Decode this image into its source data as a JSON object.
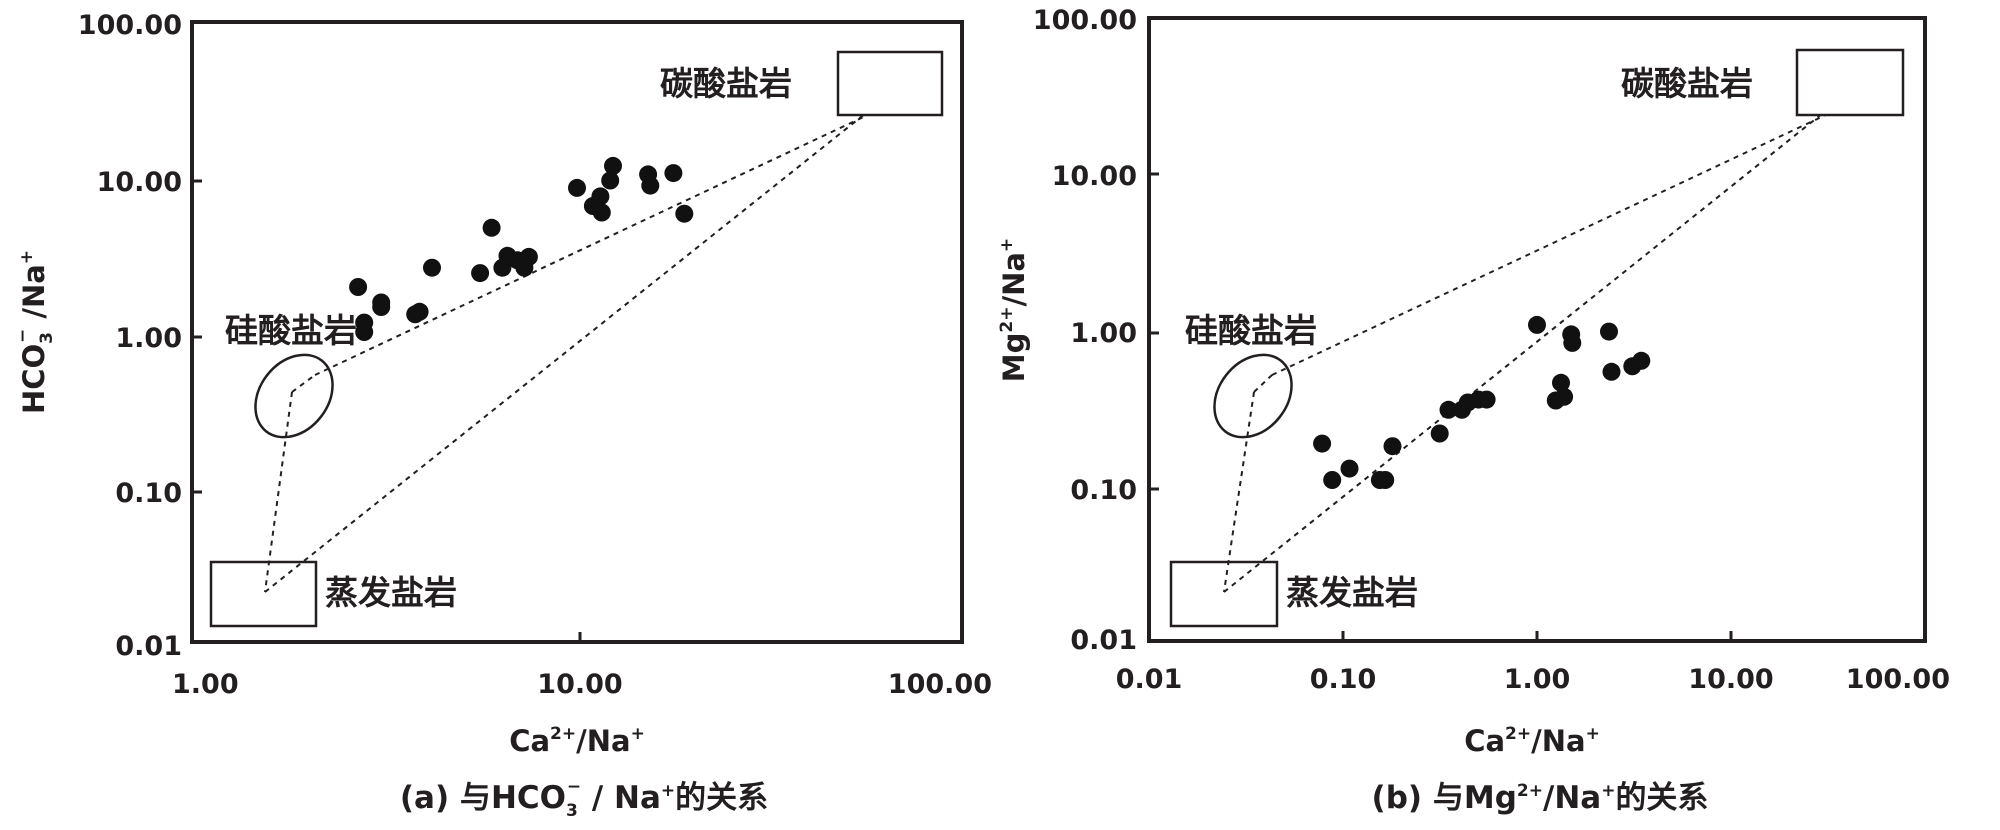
{
  "chart_data": [
    {
      "type": "scatter",
      "panel": "a",
      "x_scale": "log",
      "y_scale": "log",
      "xlim": [
        1,
        100
      ],
      "ylim": [
        0.01,
        100
      ],
      "x_ticks": [
        "1.00",
        "10.00",
        "100.00"
      ],
      "y_ticks": [
        "0.01",
        "0.10",
        "1.00",
        "10.00",
        "100.00"
      ],
      "xlabel": {
        "base": "Ca",
        "sup": "2+",
        "rest": "/Na",
        "sup2": "+"
      },
      "ylabel": {
        "base": "HCO",
        "sub": "3",
        "sup": "−",
        "rest": " /Na",
        "sup2": "+"
      },
      "caption": {
        "prefix": "(a) 与",
        "base": "HCO",
        "sub": "3",
        "sup": "−",
        "mid": " / Na",
        "sup2": "+",
        "suffix": "的关系"
      },
      "zones": {
        "carbonate": "碳酸盐岩",
        "silicate": "硅酸盐岩",
        "evaporite": "蒸发盐岩"
      },
      "points": [
        [
          2.7,
          1.95
        ],
        [
          2.8,
          1.15
        ],
        [
          2.8,
          1.0
        ],
        [
          3.1,
          1.55
        ],
        [
          3.1,
          1.45
        ],
        [
          3.8,
          1.3
        ],
        [
          3.9,
          1.35
        ],
        [
          4.2,
          2.6
        ],
        [
          5.6,
          2.4
        ],
        [
          6.0,
          4.7
        ],
        [
          6.4,
          2.6
        ],
        [
          6.6,
          3.1
        ],
        [
          7.0,
          2.9
        ],
        [
          7.3,
          2.6
        ],
        [
          7.5,
          3.05
        ],
        [
          10.0,
          8.5
        ],
        [
          11.0,
          6.5
        ],
        [
          11.5,
          7.5
        ],
        [
          11.6,
          5.9
        ],
        [
          12.2,
          9.5
        ],
        [
          12.4,
          11.8
        ],
        [
          15.3,
          10.4
        ],
        [
          15.5,
          8.8
        ],
        [
          17.8,
          10.6
        ],
        [
          19.0,
          5.8
        ]
      ]
    },
    {
      "type": "scatter",
      "panel": "b",
      "x_scale": "log",
      "y_scale": "log",
      "xlim": [
        0.01,
        100
      ],
      "ylim": [
        0.01,
        100
      ],
      "x_ticks": [
        "0.01",
        "0.10",
        "1.00",
        "10.00",
        "100.00"
      ],
      "y_ticks": [
        "0.01",
        "0.10",
        "1.00",
        "10.00",
        "100.00"
      ],
      "xlabel": {
        "base": "Ca",
        "sup": "2+",
        "rest": "/Na",
        "sup2": "+"
      },
      "ylabel": {
        "base": "Mg",
        "sup": "2+",
        "rest": "/Na",
        "sup2": "+"
      },
      "caption": {
        "prefix": "(b) 与",
        "base": "Mg",
        "sup": "2+",
        "mid": "/Na",
        "sup2": "+",
        "suffix": "的关系"
      },
      "zones": {
        "carbonate": "碳酸盐岩",
        "silicate": "硅酸盐岩",
        "evaporite": "蒸发盐岩"
      },
      "points": [
        [
          0.078,
          0.185
        ],
        [
          0.088,
          0.108
        ],
        [
          0.108,
          0.128
        ],
        [
          0.155,
          0.108
        ],
        [
          0.165,
          0.108
        ],
        [
          0.18,
          0.178
        ],
        [
          0.315,
          0.215
        ],
        [
          0.35,
          0.305
        ],
        [
          0.41,
          0.305
        ],
        [
          0.44,
          0.34
        ],
        [
          0.5,
          0.355
        ],
        [
          0.55,
          0.355
        ],
        [
          1.0,
          1.07
        ],
        [
          1.25,
          0.35
        ],
        [
          1.33,
          0.455
        ],
        [
          1.38,
          0.37
        ],
        [
          1.5,
          0.93
        ],
        [
          1.52,
          0.82
        ],
        [
          2.35,
          0.97
        ],
        [
          2.42,
          0.535
        ],
        [
          3.1,
          0.58
        ],
        [
          3.45,
          0.63
        ]
      ]
    }
  ]
}
